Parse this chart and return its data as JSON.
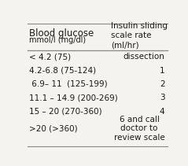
{
  "col1_header_main": "Blood glucose ",
  "col1_header_small": "mmol/l (mg/dl)",
  "col2_header": "Insulin sliding\nscale rate\n(ml/hr)",
  "rows": [
    {
      "glucose": "< 4.2 (75)",
      "rate": "dissection"
    },
    {
      "glucose": "4.2-6.8 (75-124)",
      "rate": "1"
    },
    {
      "glucose": " 6.9– 11  (125-199)",
      "rate": "2"
    },
    {
      "glucose": "11.1 – 14.9 (200-269)",
      "rate": "3"
    },
    {
      "glucose": "15 – 20 (270-360)",
      "rate": "4"
    },
    {
      "glucose": ">20 (>360)",
      "rate": "6 and call\ndoctor to\nreview scale"
    }
  ],
  "bg_color": "#f5f3ef",
  "line_color": "#888888",
  "text_color": "#1a1a1a",
  "col1_header_fontsize": 8.5,
  "col1_header_small_fontsize": 7.0,
  "col2_header_fontsize": 7.5,
  "body_fontsize": 7.5,
  "col_split": 0.6
}
